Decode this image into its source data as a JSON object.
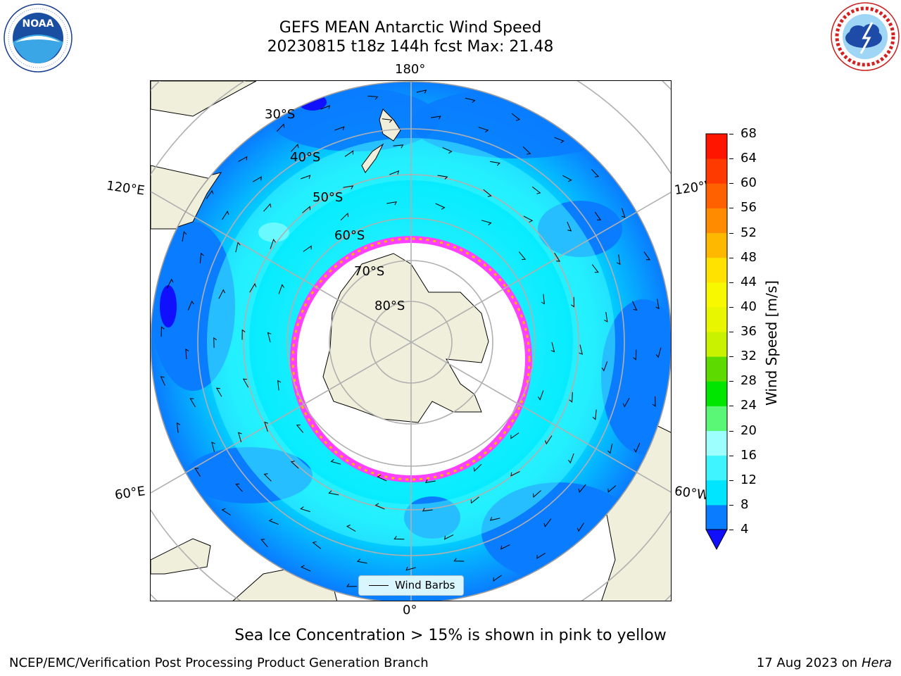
{
  "header": {
    "title_line1": "GEFS MEAN Antarctic Wind Speed",
    "title_line2": "20230815 t18z 144h fcst   Max: 21.48"
  },
  "logos": {
    "left": {
      "name": "NOAA",
      "ring_text": "NATIONAL OCEANIC AND ATMOSPHERIC ADMINISTRATION · U.S. DEPARTMENT OF COMMERCE"
    },
    "right": {
      "name": "NATIONAL WEATHER SERVICE"
    }
  },
  "map": {
    "projection": "south polar stereographic",
    "meridian_labels": {
      "top": "180°",
      "bottom": "0°",
      "upper_left": "120°E",
      "upper_right": "120°W",
      "lower_left": "60°E",
      "lower_right": "60°W"
    },
    "parallel_labels": [
      "30°S",
      "40°S",
      "50°S",
      "60°S",
      "70°S",
      "80°S"
    ],
    "legend": {
      "entry": "Wind Barbs"
    },
    "colors": {
      "land": "#efefdb",
      "ice_shelf": "#ffffff",
      "sea_ice_edge": "#ff40ff",
      "grid": "#b0b0b0"
    }
  },
  "colorbar": {
    "label": "Wind Speed [m/s]",
    "ticks": [
      "4",
      "8",
      "12",
      "16",
      "20",
      "24",
      "28",
      "32",
      "36",
      "40",
      "44",
      "48",
      "52",
      "56",
      "60",
      "64",
      "68"
    ],
    "colors": [
      "#0a7cff",
      "#00e5ff",
      "#40f4ff",
      "#9effff",
      "#5af776",
      "#00e600",
      "#5ddb00",
      "#c8f200",
      "#e8f700",
      "#f8f800",
      "#ffe200",
      "#ffb800",
      "#ff8c00",
      "#ff6100",
      "#ff3a00",
      "#ff1500"
    ],
    "underflow_color": "#1010ff"
  },
  "footer": {
    "caption": "Sea Ice Concentration > 15% is shown in pink to yellow",
    "credit": "NCEP/EMC/Verification Post Processing Product Generation Branch",
    "date": "17 Aug 2023 on",
    "machine": "Hera"
  }
}
